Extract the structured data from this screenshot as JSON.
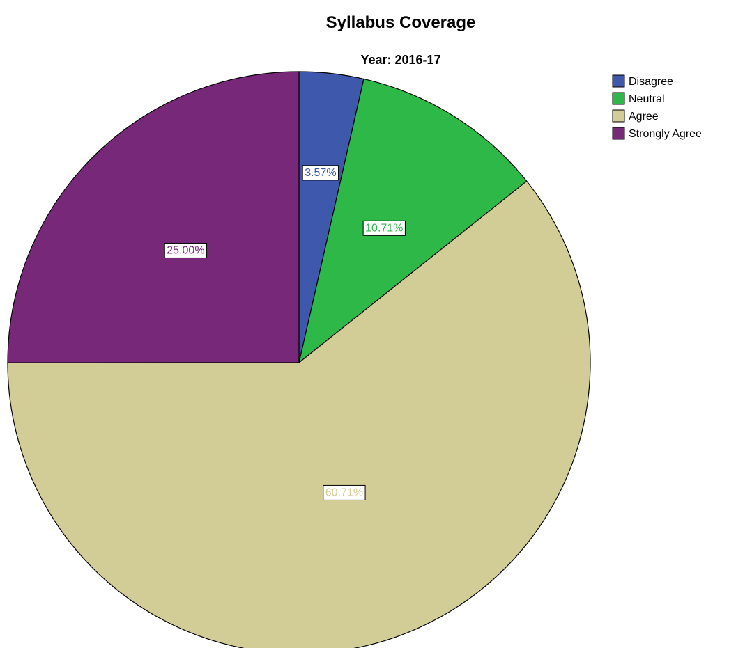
{
  "chart_data": {
    "type": "pie",
    "title": "Syllabus Coverage",
    "subtitle": "Year: 2016-17",
    "legend_position": "top-right",
    "slices": [
      {
        "label": "Disagree",
        "value": 3.57,
        "display": "3.57%",
        "color": "#3e58ac"
      },
      {
        "label": "Neutral",
        "value": 10.71,
        "display": "10.71%",
        "color": "#2eb848"
      },
      {
        "label": "Agree",
        "value": 60.71,
        "display": "60.71%",
        "color": "#d2cc96"
      },
      {
        "label": "Strongly Agree",
        "value": 25.0,
        "display": "25.00%",
        "color": "#782878"
      }
    ]
  }
}
